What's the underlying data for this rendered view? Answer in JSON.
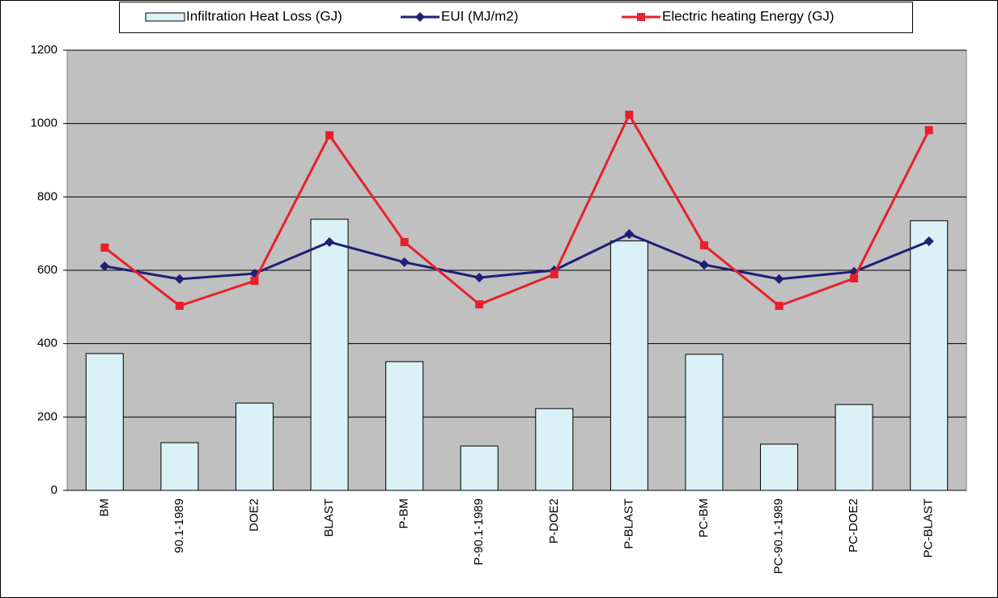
{
  "chart_data": {
    "type": "bar_line",
    "categories": [
      "BM",
      "90.1-1989",
      "DOE2",
      "BLAST",
      "P-BM",
      "P-90.1-1989",
      "P-DOE2",
      "P-BLAST",
      "PC-BM",
      "PC-90.1-1989",
      "PC-DOE2",
      "PC-BLAST"
    ],
    "series": [
      {
        "name": "Infiltration Heat Loss (GJ)",
        "type": "bar",
        "color": "#d9f1f7",
        "values": [
          373,
          130,
          238,
          739,
          351,
          121,
          223,
          680,
          371,
          126,
          234,
          735
        ]
      },
      {
        "name": "EUI (MJ/m2)",
        "type": "line",
        "marker": "diamond",
        "color": "#1f1f78",
        "values": [
          611,
          576,
          591,
          677,
          622,
          580,
          600,
          699,
          615,
          576,
          596,
          679
        ]
      },
      {
        "name": "Electric heating Energy (GJ)",
        "type": "line",
        "marker": "square",
        "color": "#e8202a",
        "values": [
          662,
          503,
          571,
          968,
          677,
          507,
          589,
          1024,
          668,
          503,
          578,
          982
        ]
      }
    ],
    "ylim": [
      0,
      1200
    ],
    "yticks": [
      0,
      200,
      400,
      600,
      800,
      1000,
      1200
    ],
    "grid": true,
    "legend": "top"
  }
}
